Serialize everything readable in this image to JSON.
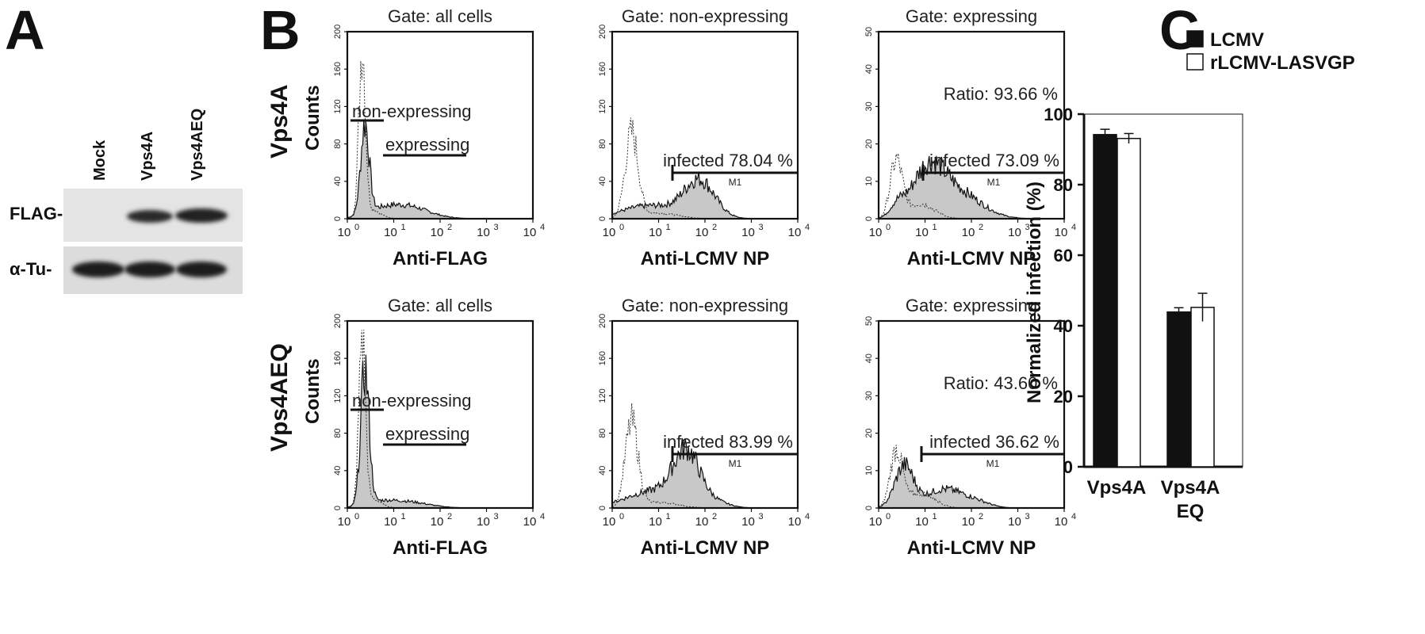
{
  "panels": {
    "A": "A",
    "B": "B",
    "C": "C"
  },
  "western_blot": {
    "lanes": [
      "Mock",
      "Vps4A",
      "Vps4AEQ"
    ],
    "rows": [
      {
        "label": "FLAG-",
        "bands": [
          0,
          0.85,
          0.9
        ]
      },
      {
        "label": "α-Tu-",
        "bands": [
          0.95,
          0.95,
          0.95
        ]
      }
    ]
  },
  "flow": {
    "row_labels": [
      "Vps4A",
      "Vps4AEQ"
    ],
    "y_axis_label": "Counts",
    "x_ticks": [
      "10",
      "10",
      "10",
      "10",
      "10"
    ],
    "x_tick_exponents": [
      "0",
      "1",
      "2",
      "3",
      "4"
    ],
    "columns": [
      {
        "gate": "Gate: all cells",
        "xlabel": "Anti-FLAG",
        "ymax": 200,
        "yticks": [
          "0",
          "40",
          "80",
          "120",
          "160",
          "200"
        ]
      },
      {
        "gate": "Gate: non-expressing",
        "xlabel": "Anti-LCMV NP",
        "ymax": 200,
        "yticks": [
          "0",
          "40",
          "80",
          "120",
          "160",
          "200"
        ]
      },
      {
        "gate": "Gate: expressing",
        "xlabel": "Anti-LCMV NP",
        "ymax": 50,
        "yticks": [
          "0",
          "10",
          "20",
          "30",
          "40",
          "50"
        ]
      }
    ],
    "gate_labels": {
      "non_expressing": "non-expressing",
      "expressing": "expressing",
      "marker": "M1"
    },
    "rows": [
      {
        "infected": [
          "infected 78.04 %",
          "infected 73.09 %"
        ],
        "ratio": "Ratio: 93.66 %"
      },
      {
        "infected": [
          "infected 83.99 %",
          "infected 36.62 %"
        ],
        "ratio": "Ratio: 43.60 %"
      }
    ]
  },
  "chart_data": {
    "type": "bar",
    "ylabel": "Normalized infection (%)",
    "ylim": [
      0,
      100
    ],
    "yticks": [
      0,
      20,
      40,
      60,
      80,
      100
    ],
    "categories": [
      "Vps4A",
      "Vps4A EQ"
    ],
    "category_lines": [
      [
        "Vps4A"
      ],
      [
        "Vps4A",
        "EQ"
      ]
    ],
    "series": [
      {
        "name": "LCMV",
        "color": "#111111",
        "values": [
          94.2,
          43.9
        ],
        "errors": [
          1.5,
          1.2
        ]
      },
      {
        "name": "rLCMV-LASVGP",
        "color": "#ffffff",
        "values": [
          93.1,
          45.2
        ],
        "errors": [
          1.4,
          4.0
        ]
      }
    ]
  }
}
